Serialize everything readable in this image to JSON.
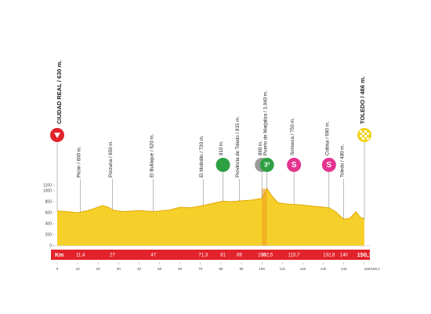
{
  "chart_data": {
    "type": "profile",
    "xlim": [
      0,
      150.1
    ],
    "ylim": [
      0,
      1100
    ],
    "xticks": [
      0,
      10,
      20,
      30,
      40,
      50,
      60,
      70,
      80,
      90,
      100,
      110,
      120,
      130,
      140,
      {
        "value": 150,
        "label": "150/150,1"
      }
    ],
    "yticks": [
      0,
      200,
      400,
      600,
      800,
      1000,
      1100
    ],
    "color": "#f6d02a",
    "line_color": "#e0a800",
    "band_color": "#e3232b",
    "band_label": "Km",
    "x": [
      0,
      5,
      10,
      15,
      20,
      22,
      25,
      27,
      32,
      40,
      47,
      55,
      60,
      65,
      71.3,
      76,
      81,
      85,
      89,
      95,
      100,
      102.5,
      105,
      108,
      112,
      115.7,
      120,
      125,
      130,
      132.8,
      136,
      140,
      143,
      146,
      148,
      150.1
    ],
    "values": [
      630,
      620,
      600,
      640,
      700,
      730,
      700,
      650,
      620,
      640,
      620,
      650,
      700,
      690,
      730,
      770,
      810,
      800,
      815,
      830,
      860,
      1040,
      900,
      780,
      760,
      750,
      740,
      720,
      700,
      690,
      620,
      480,
      500,
      620,
      520,
      486
    ],
    "start": {
      "label": "CIUDAD REAL / 630 m.",
      "icon_color": "#e3232b"
    },
    "waypoints": [
      {
        "km": {
          "value": 11.4,
          "label": "11,4"
        },
        "label": "Picón / 600 m."
      },
      {
        "km": 27,
        "label": "Porzuna / 650 m."
      },
      {
        "km": 47,
        "label": "El Bullaque / 620 m."
      },
      {
        "km": {
          "value": 71.3,
          "label": "71,3"
        },
        "label": "El Molinillo / 730 m."
      },
      {
        "km": 81,
        "label": "810 m.",
        "icon_color": "#2ea043"
      },
      {
        "km": 89,
        "label": "Provincia de Toledo / 815 m."
      },
      {
        "km": 100,
        "label": "860 m.",
        "icon_color": "#9a9a9a"
      },
      {
        "km": {
          "value": 102.5,
          "label": "102,5"
        },
        "label": "Puerto de Marjaliza / 1.040 m.",
        "icon": "3ª",
        "icon_color": "#2ea043"
      },
      {
        "km": {
          "value": 115.7,
          "label": "115,7"
        },
        "label": "Sonseca / 750 m.",
        "icon": "S",
        "icon_color": "#e4338f"
      },
      {
        "km": {
          "value": 132.8,
          "label": "132,8"
        },
        "label": "Cobisa / 690 m.",
        "icon": "S",
        "icon_color": "#e4338f"
      },
      {
        "km": 140,
        "label": "Toledo / 480 m."
      },
      {
        "km": {
          "value": 150.1,
          "label": "150,1"
        },
        "label": "TOLEDO / 486 m.",
        "icon_color": "#f2d21a"
      }
    ]
  }
}
